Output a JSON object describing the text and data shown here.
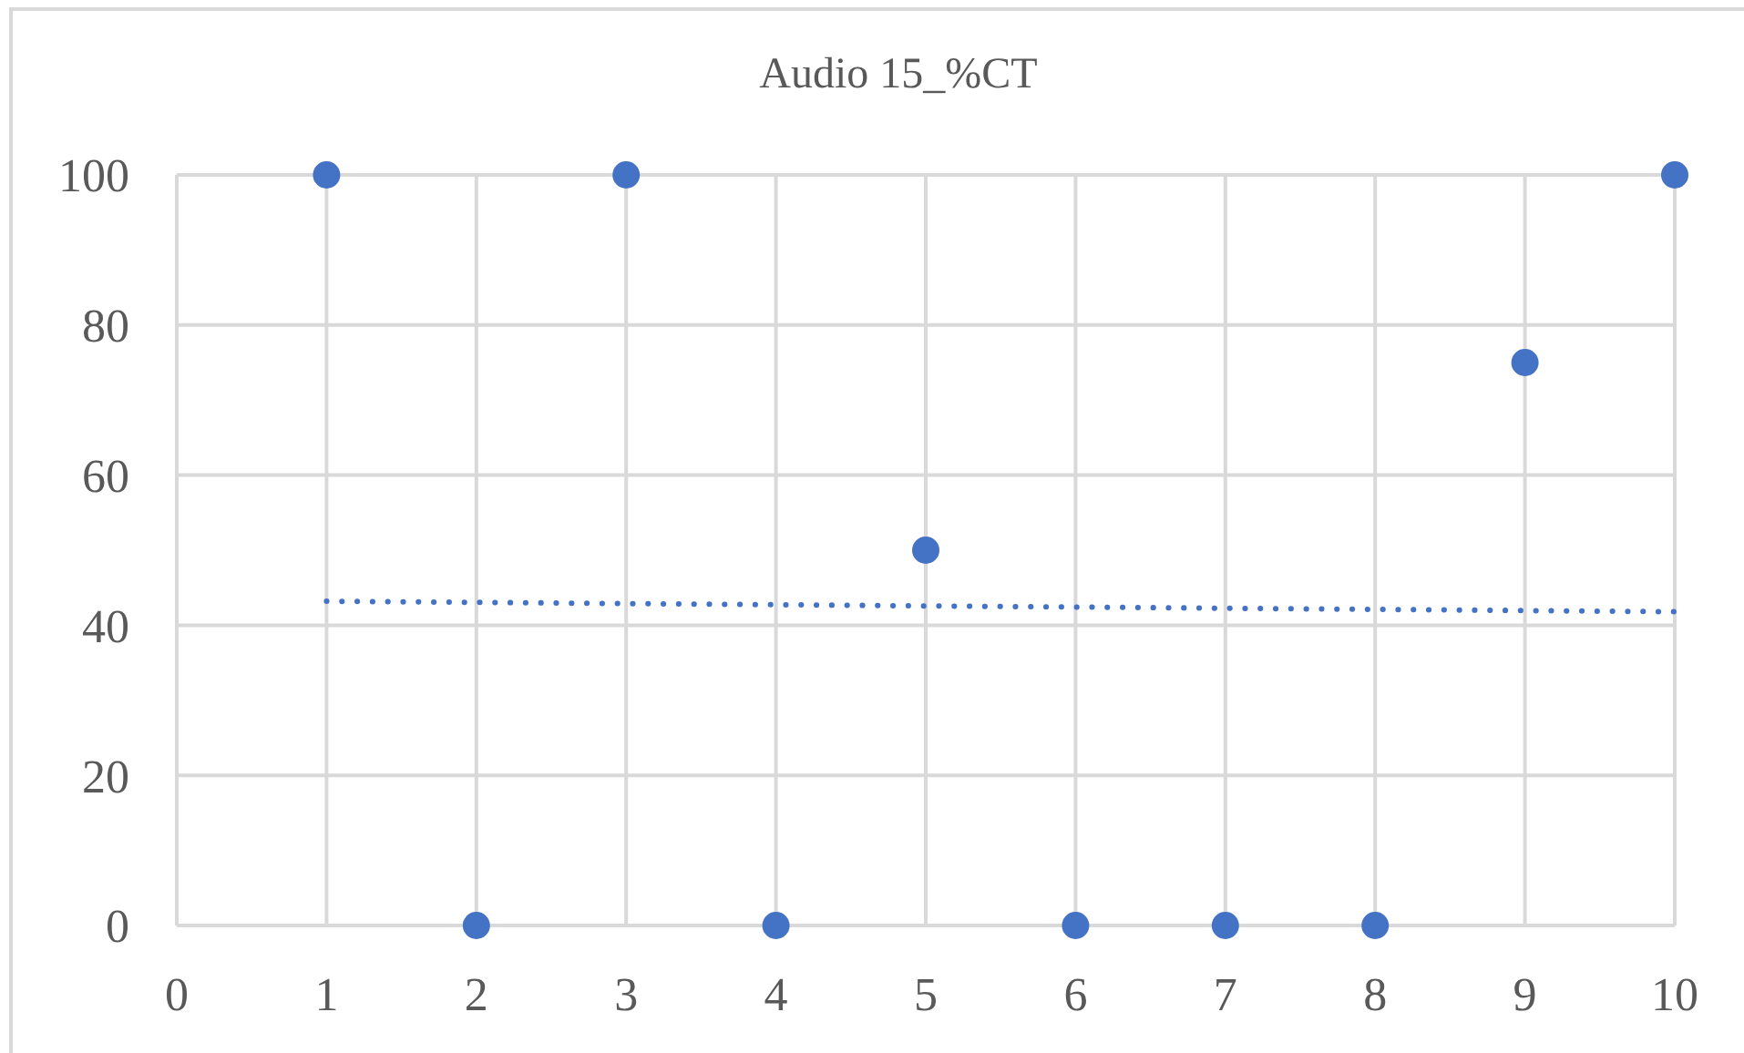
{
  "chart_data": {
    "type": "scatter",
    "title": "Audio 15_%CT",
    "x": [
      1,
      2,
      3,
      4,
      5,
      6,
      7,
      8,
      9,
      10
    ],
    "series": [
      {
        "color": "#4472c4",
        "marker": "circle",
        "values": [
          100,
          0,
          100,
          0,
          50,
          0,
          0,
          0,
          75,
          100
        ]
      },
      {
        "type": "line",
        "x": [
          1,
          10
        ],
        "values": [
          43.2,
          41.8
        ],
        "color": "#4472c4",
        "line_style": "dotted"
      }
    ],
    "xlim": [
      0,
      10
    ],
    "xticks": [
      0,
      1,
      2,
      3,
      4,
      5,
      6,
      7,
      8,
      9,
      10
    ],
    "ylim": [
      0,
      100
    ],
    "yticks": [
      0,
      20,
      40,
      60,
      80,
      100
    ],
    "grid": true
  }
}
